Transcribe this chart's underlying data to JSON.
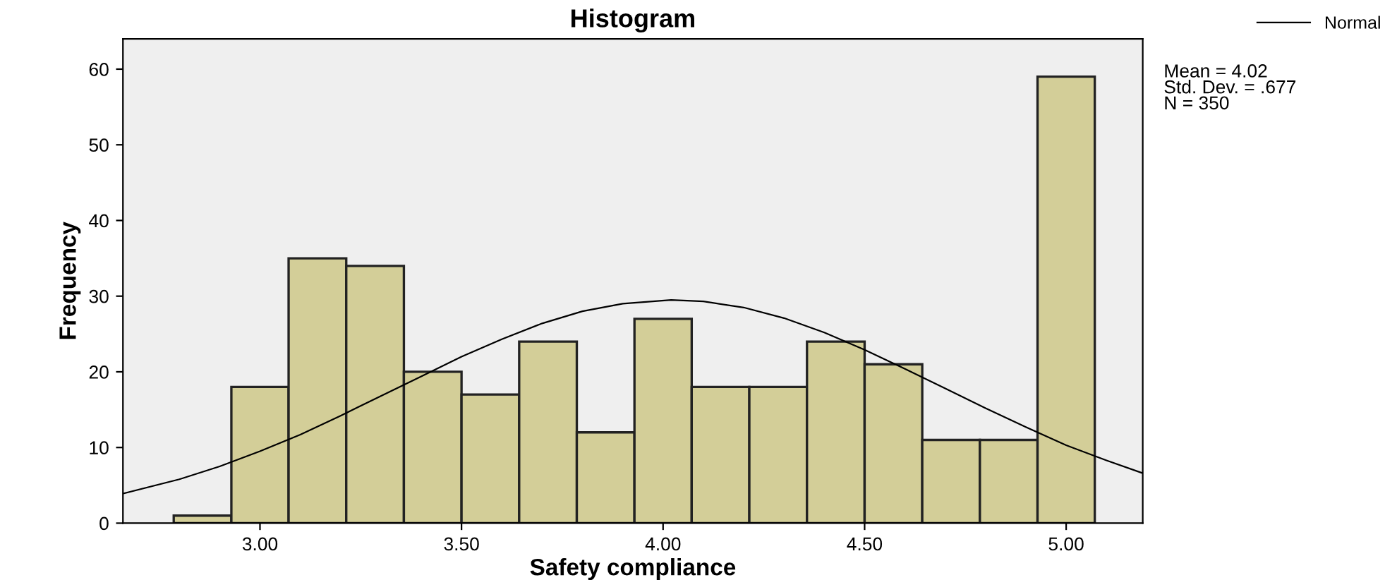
{
  "chart_data": {
    "type": "histogram",
    "title": "Histogram",
    "xlabel": "Safety compliance",
    "ylabel": "Frequency",
    "series": [
      {
        "type": "histogram",
        "color": "#d3ce98",
        "bins": [
          2.786,
          2.929,
          3.071,
          3.214,
          3.357,
          3.5,
          3.643,
          3.786,
          3.929,
          4.071,
          4.214,
          4.357,
          4.5,
          4.643,
          4.786,
          4.929,
          5.071
        ],
        "values": [
          1,
          18,
          35,
          34,
          20,
          17,
          24,
          12,
          27,
          18,
          18,
          24,
          21,
          11,
          11,
          59
        ]
      },
      {
        "type": "line",
        "name": "Normal",
        "color": "#000000",
        "x": [
          2.66,
          2.8,
          2.9,
          3.0,
          3.1,
          3.2,
          3.3,
          3.4,
          3.5,
          3.6,
          3.7,
          3.8,
          3.9,
          4.02,
          4.1,
          4.2,
          4.3,
          4.4,
          4.5,
          4.6,
          4.7,
          4.8,
          4.9,
          5.0,
          5.1,
          5.19
        ],
        "values": [
          3.9,
          5.8,
          7.5,
          9.5,
          11.7,
          14.2,
          16.8,
          19.4,
          22.0,
          24.3,
          26.4,
          28.0,
          29.0,
          29.5,
          29.3,
          28.5,
          27.1,
          25.2,
          22.9,
          20.4,
          17.8,
          15.2,
          12.7,
          10.3,
          8.3,
          6.6
        ]
      }
    ],
    "xlim": [
      2.66,
      5.19
    ],
    "ylim": [
      0,
      64
    ],
    "xticks": [
      {
        "value": 3,
        "label": "3.00"
      },
      {
        "value": 3.5,
        "label": "3.50"
      },
      {
        "value": 4,
        "label": "4.00"
      },
      {
        "value": 4.5,
        "label": "4.50"
      },
      {
        "value": 5,
        "label": "5.00"
      }
    ],
    "yticks": [
      0,
      10,
      20,
      30,
      40,
      50,
      60
    ],
    "grid": false,
    "legend": "top right",
    "marker": "none",
    "line_style": "solid",
    "annotations": [
      "Mean = 4.02\nStd. Dev. = .677\nN = 350"
    ]
  }
}
